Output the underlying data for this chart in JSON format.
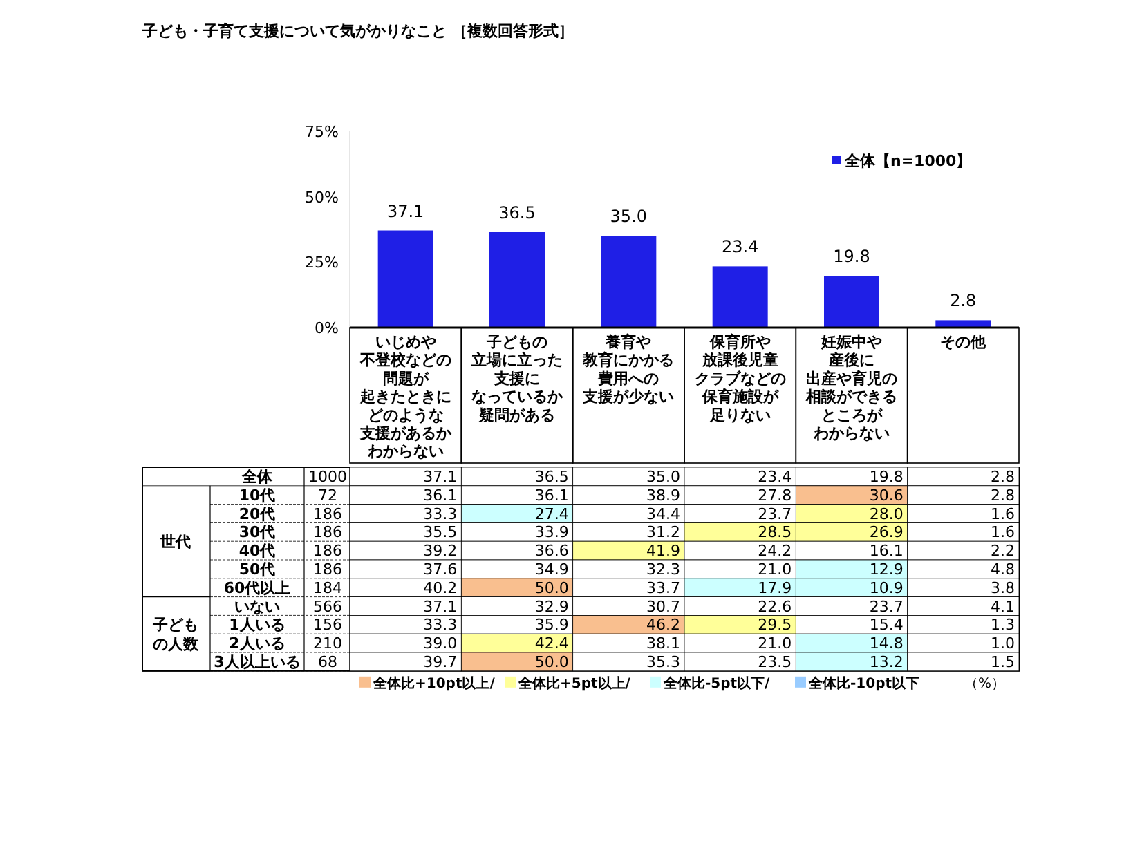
{
  "chart_data": [
    {
      "type": "bar",
      "title": "子ども・子育て支援について気がかりなこと ［複数回答形式］",
      "categories": [
        "いじめや不登校などの問題が起きたときにどのような支援があるかわからない",
        "子どもの立場に立った支援になっているか疑問がある",
        "養育や教育にかかる費用への支援が少ない",
        "保育所や放課後児童クラブなどの保育施設が足りない",
        "妊娠中や産後に出産や育児の相談ができるところがわからない",
        "その他"
      ],
      "series": [
        {
          "name": "全体【n=1000】",
          "color": "#1f1fe6",
          "values": [
            37.1,
            36.5,
            35.0,
            23.4,
            19.8,
            2.8
          ],
          "value_labels": [
            "37.1",
            "36.5",
            "35.0",
            "23.4",
            "19.8",
            "2.8"
          ]
        }
      ],
      "ylim": [
        0,
        75
      ],
      "yticks": [
        {
          "value": 0,
          "label": "0%"
        },
        {
          "value": 25,
          "label": "25%"
        },
        {
          "value": 50,
          "label": "50%"
        },
        {
          "value": 75,
          "label": "75%"
        }
      ],
      "legend": "top right"
    },
    {
      "type": "heatmap",
      "categories": [
        null,
        null,
        null,
        null,
        null,
        null
      ],
      "y_categories": [
        "全体",
        "10代",
        "20代",
        "30代",
        "40代",
        "50代",
        "60代以上",
        "いない",
        "1人いる",
        "2人いる",
        "3人以上いる"
      ],
      "y2_categories": [
        "1000",
        "72",
        "186",
        "186",
        "186",
        "186",
        "184",
        "566",
        "156",
        "210",
        "68"
      ],
      "cells": [
        [
          37.1,
          36.5,
          35.0,
          23.4,
          19.8,
          2.8
        ],
        [
          36.1,
          36.1,
          38.9,
          27.8,
          30.6,
          2.8
        ],
        [
          33.3,
          27.4,
          34.4,
          23.7,
          28.0,
          1.6
        ],
        [
          35.5,
          33.9,
          31.2,
          28.5,
          26.9,
          1.6
        ],
        [
          39.2,
          36.6,
          41.9,
          24.2,
          16.1,
          2.2
        ],
        [
          37.6,
          34.9,
          32.3,
          21.0,
          12.9,
          4.8
        ],
        [
          40.2,
          50.0,
          33.7,
          17.9,
          10.9,
          3.8
        ],
        [
          37.1,
          32.9,
          30.7,
          22.6,
          23.7,
          4.1
        ],
        [
          33.3,
          35.9,
          46.2,
          29.5,
          15.4,
          1.3
        ],
        [
          39.0,
          42.4,
          38.1,
          21.0,
          14.8,
          1.0
        ],
        [
          39.7,
          50.0,
          35.3,
          23.5,
          13.2,
          1.5
        ]
      ],
      "cell_labels": [
        [
          "37.1",
          "36.5",
          "35.0",
          "23.4",
          "19.8",
          "2.8"
        ],
        [
          "36.1",
          "36.1",
          "38.9",
          "27.8",
          "30.6",
          "2.8"
        ],
        [
          "33.3",
          "27.4",
          "34.4",
          "23.7",
          "28.0",
          "1.6"
        ],
        [
          "35.5",
          "33.9",
          "31.2",
          "28.5",
          "26.9",
          "1.6"
        ],
        [
          "39.2",
          "36.6",
          "41.9",
          "24.2",
          "16.1",
          "2.2"
        ],
        [
          "37.6",
          "34.9",
          "32.3",
          "21.0",
          "12.9",
          "4.8"
        ],
        [
          "40.2",
          "50.0",
          "33.7",
          "17.9",
          "10.9",
          "3.8"
        ],
        [
          "37.1",
          "32.9",
          "30.7",
          "22.6",
          "23.7",
          "4.1"
        ],
        [
          "33.3",
          "35.9",
          "46.2",
          "29.5",
          "15.4",
          "1.3"
        ],
        [
          "39.0",
          "42.4",
          "38.1",
          "21.0",
          "14.8",
          "1.0"
        ],
        [
          "39.7",
          "50.0",
          "35.3",
          "23.5",
          "13.2",
          "1.5"
        ]
      ],
      "data_labels": true,
      "annotations": [
        "世代",
        "子どもの人数",
        "全体比+10pt以上/",
        "全体比+5pt以上/",
        "全体比-5pt以下/",
        "全体比-10pt以下",
        "（%）"
      ]
    }
  ]
}
